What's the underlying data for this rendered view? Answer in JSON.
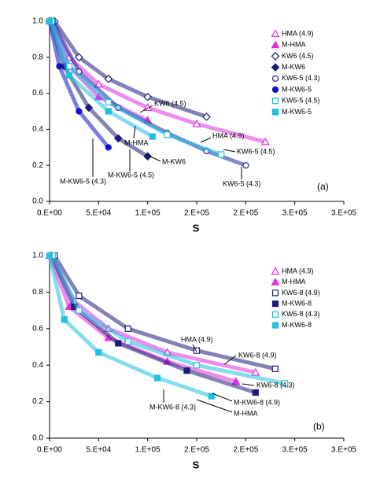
{
  "chart_data": [
    {
      "type": "scatter",
      "panel_label": "(a)",
      "x_label": "S",
      "xlim": [
        0,
        300000
      ],
      "ylim": [
        0,
        1
      ],
      "xticks": [
        {
          "value": 0,
          "label": "0.E+00"
        },
        {
          "value": 50000,
          "label": "5.E+04"
        },
        {
          "value": 100000,
          "label": "1.E+05"
        },
        {
          "value": 150000,
          "label": "2.E+05"
        },
        {
          "value": 200000,
          "label": "2.E+05"
        },
        {
          "value": 250000,
          "label": "3.E+05"
        },
        {
          "value": 300000,
          "label": "3.E+05"
        }
      ],
      "yticks": [
        {
          "value": 0,
          "label": "0.0"
        },
        0.2,
        0.4,
        0.6,
        0.8,
        {
          "value": 1,
          "label": "1.0"
        }
      ],
      "legend": "top-right",
      "series": [
        {
          "name": "HMA (4.9)",
          "color": "#e030e0",
          "marker": "triangle-open",
          "x": [
            2000,
            20000,
            50000,
            100000,
            150000,
            220000
          ],
          "values": [
            1.0,
            0.8,
            0.65,
            0.52,
            0.43,
            0.33
          ]
        },
        {
          "name": "M-HMA",
          "color": "#e030e0",
          "marker": "triangle",
          "x": [
            0,
            20000,
            50000,
            100000
          ],
          "values": [
            1.0,
            0.75,
            0.58,
            0.45
          ]
        },
        {
          "name": "KW6 (4.5)",
          "color": "#1c1c78",
          "marker": "diamond-open",
          "x": [
            5000,
            30000,
            60000,
            100000,
            160000
          ],
          "values": [
            1.0,
            0.8,
            0.68,
            0.58,
            0.47
          ]
        },
        {
          "name": "M-KW6",
          "color": "#1c1c78",
          "marker": "diamond",
          "x": [
            0,
            15000,
            40000,
            70000,
            100000
          ],
          "values": [
            1.0,
            0.75,
            0.52,
            0.35,
            0.25
          ]
        },
        {
          "name": "KW6-5 (4.3)",
          "color": "#2020a0",
          "marker": "circle-open",
          "x": [
            3000,
            30000,
            70000,
            120000,
            160000,
            200000
          ],
          "values": [
            1.0,
            0.72,
            0.52,
            0.38,
            0.28,
            0.2
          ]
        },
        {
          "name": "M-KW6-5",
          "color": "#1010c8",
          "marker": "circle",
          "x": [
            0,
            10000,
            30000,
            60000
          ],
          "values": [
            1.0,
            0.75,
            0.5,
            0.3
          ]
        },
        {
          "name": "KW6-5 (4.5)",
          "color": "#20c0e0",
          "marker": "square-open",
          "x": [
            2000,
            20000,
            60000,
            120000,
            175000
          ],
          "values": [
            1.0,
            0.75,
            0.55,
            0.37,
            0.26
          ]
        },
        {
          "name": "M-KW6-5",
          "color": "#20c0e0",
          "marker": "square",
          "x": [
            0,
            20000,
            60000,
            105000
          ],
          "values": [
            1.0,
            0.7,
            0.5,
            0.36
          ]
        }
      ],
      "annotations": [
        "KW6 (4.5)",
        "HMA (4.9)",
        "M-HMA",
        "KW6-5 (4.5)",
        "M-KW6",
        "M-KW6-5 (4.3)",
        "M-KW6-5 (4.5)",
        "KW6-5 (4.3)"
      ]
    },
    {
      "type": "scatter",
      "panel_label": "(b)",
      "x_label": "S",
      "xlim": [
        0,
        300000
      ],
      "ylim": [
        0,
        1
      ],
      "xticks": [
        {
          "value": 0,
          "label": "0.E+00"
        },
        {
          "value": 50000,
          "label": "5.E+04"
        },
        {
          "value": 100000,
          "label": "1.E+05"
        },
        {
          "value": 150000,
          "label": "2.E+05"
        },
        {
          "value": 200000,
          "label": "2.E+05"
        },
        {
          "value": 250000,
          "label": "3.E+05"
        },
        {
          "value": 300000,
          "label": "3.E+05"
        }
      ],
      "yticks": [
        {
          "value": 0,
          "label": "0.0"
        },
        0.2,
        0.4,
        0.6,
        0.8,
        {
          "value": 1,
          "label": "1.0"
        }
      ],
      "legend": "top-right",
      "series": [
        {
          "name": "HMA (4.9)",
          "color": "#e030e0",
          "marker": "triangle-open",
          "x": [
            2000,
            25000,
            60000,
            120000,
            210000
          ],
          "values": [
            1.0,
            0.75,
            0.6,
            0.47,
            0.36
          ]
        },
        {
          "name": "M-HMA",
          "color": "#e030e0",
          "marker": "triangle",
          "x": [
            0,
            20000,
            60000,
            120000,
            190000
          ],
          "values": [
            1.0,
            0.72,
            0.55,
            0.42,
            0.31
          ]
        },
        {
          "name": "KW6-8 (4.9)",
          "color": "#1c1c78",
          "marker": "square-open",
          "x": [
            5000,
            30000,
            80000,
            150000,
            230000
          ],
          "values": [
            1.0,
            0.78,
            0.6,
            0.48,
            0.38
          ]
        },
        {
          "name": "M-KW6-8",
          "color": "#1c1c78",
          "marker": "square",
          "x": [
            2000,
            25000,
            70000,
            140000,
            210000
          ],
          "values": [
            1.0,
            0.72,
            0.52,
            0.37,
            0.25
          ]
        },
        {
          "name": "KW6-8 (4.3)",
          "color": "#20c0e0",
          "marker": "square-open",
          "x": [
            3000,
            30000,
            80000,
            150000,
            240000
          ],
          "values": [
            1.0,
            0.7,
            0.53,
            0.4,
            0.3
          ]
        },
        {
          "name": "M-KW6-8",
          "color": "#20c0e0",
          "marker": "square",
          "x": [
            0,
            15000,
            50000,
            110000,
            165000
          ],
          "values": [
            1.0,
            0.65,
            0.47,
            0.33,
            0.23
          ]
        }
      ],
      "annotations": [
        "HMA (4.9)",
        "KW6-8 (4.9)",
        "KW6-8 (4.3)",
        "M-KW6-8 (4.9)",
        "M-HMA",
        "M-KW6-8 (4.3)"
      ]
    }
  ]
}
